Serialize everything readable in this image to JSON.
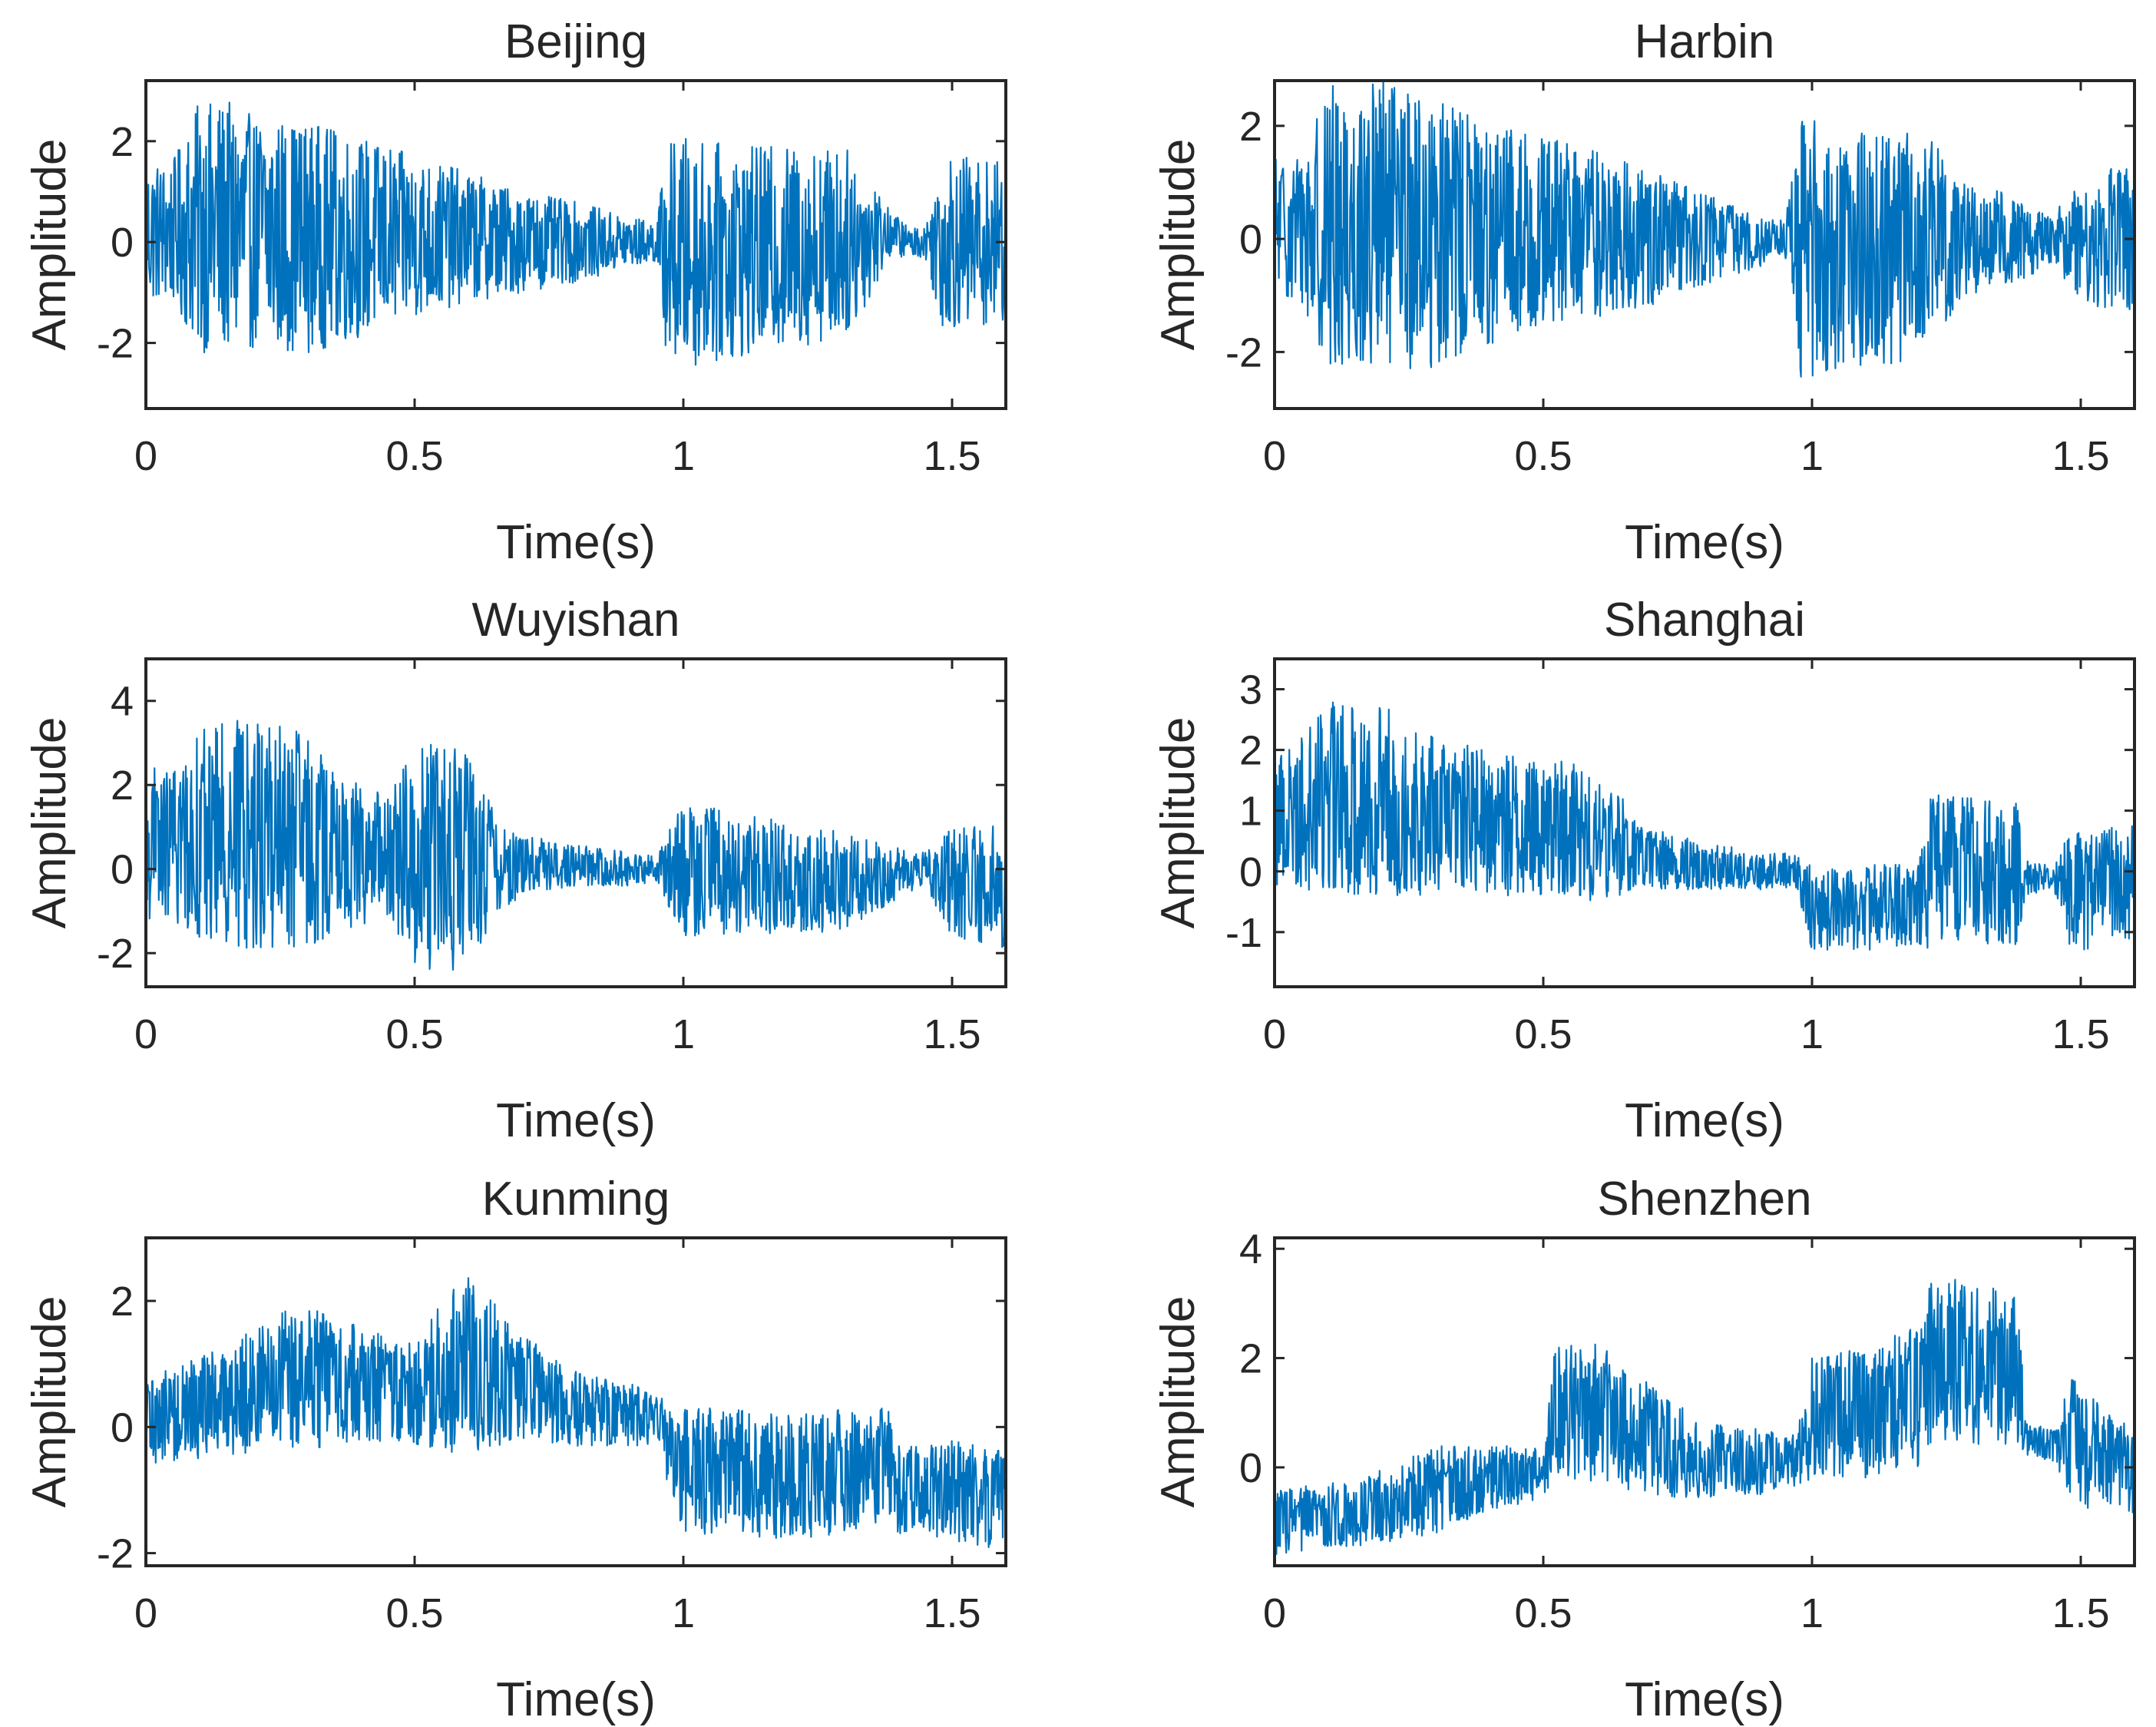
{
  "chart_data": [
    {
      "type": "line",
      "title": "Beijing",
      "xlabel": "Time(s)",
      "ylabel": "Amplitude",
      "xlim": [
        0,
        1.6
      ],
      "ylim": [
        -3.3,
        3.2
      ],
      "xticks": [
        {
          "v": 0,
          "label": "0"
        },
        {
          "v": 0.5,
          "label": "0.5"
        },
        {
          "v": 1,
          "label": "1"
        },
        {
          "v": 1.5,
          "label": "1.5"
        }
      ],
      "yticks": [
        {
          "v": -2,
          "label": "-2"
        },
        {
          "v": 0,
          "label": "0"
        },
        {
          "v": 2,
          "label": "2"
        }
      ],
      "color": "#0072bd",
      "envelope": {
        "t": [
          0,
          0.05,
          0.1,
          0.15,
          0.2,
          0.3,
          0.4,
          0.5,
          0.6,
          0.7,
          0.8,
          0.9,
          0.95,
          0.97,
          1.0,
          1.1,
          1.2,
          1.3,
          1.35,
          1.38,
          1.42,
          1.45,
          1.48,
          1.52,
          1.6
        ],
        "amplitude": [
          1.4,
          1.4,
          2.5,
          2.5,
          2.3,
          2.3,
          2.0,
          1.6,
          1.3,
          1.0,
          0.8,
          0.5,
          0.4,
          2.2,
          2.3,
          2.1,
          2.0,
          1.9,
          1.2,
          0.5,
          0.3,
          0.3,
          1.7,
          1.7,
          1.6
        ],
        "offset": [
          0.2,
          0.2,
          0.3,
          0.3,
          0.2,
          0.1,
          0.1,
          0.1,
          0.1,
          0.0,
          0.0,
          0.0,
          0.0,
          -0.2,
          -0.2,
          -0.2,
          -0.1,
          0.0,
          0.1,
          0.2,
          0.0,
          0.0,
          0.0,
          0.0,
          0.0
        ]
      }
    },
    {
      "type": "line",
      "title": "Harbin",
      "xlabel": "Time(s)",
      "ylabel": "Amplitude",
      "xlim": [
        0,
        1.6
      ],
      "ylim": [
        -3.0,
        2.8
      ],
      "xticks": [
        {
          "v": 0,
          "label": "0"
        },
        {
          "v": 0.5,
          "label": "0.5"
        },
        {
          "v": 1,
          "label": "1"
        },
        {
          "v": 1.5,
          "label": "1.5"
        }
      ],
      "yticks": [
        {
          "v": -2,
          "label": "-2"
        },
        {
          "v": 0,
          "label": "0"
        },
        {
          "v": 2,
          "label": "2"
        }
      ],
      "color": "#0072bd",
      "envelope": {
        "t": [
          0,
          0.05,
          0.1,
          0.2,
          0.3,
          0.4,
          0.5,
          0.6,
          0.7,
          0.8,
          0.9,
          0.95,
          0.98,
          1.0,
          1.1,
          1.2,
          1.25,
          1.3,
          1.4,
          1.45,
          1.48,
          1.52,
          1.6
        ],
        "amplitude": [
          1.3,
          1.3,
          2.5,
          2.6,
          2.4,
          2.0,
          1.7,
          1.5,
          1.2,
          0.8,
          0.5,
          0.3,
          2.3,
          2.3,
          2.1,
          2.0,
          1.5,
          1.0,
          0.7,
          0.4,
          0.9,
          1.2,
          1.3
        ],
        "offset": [
          0.2,
          0.2,
          0.2,
          0.2,
          0.1,
          0.1,
          0.1,
          0.1,
          0.0,
          0.0,
          0.0,
          0.0,
          -0.2,
          -0.2,
          -0.2,
          -0.1,
          0.0,
          0.0,
          0.0,
          0.0,
          0.0,
          0.0,
          0.0
        ]
      }
    },
    {
      "type": "line",
      "title": "Wuyishan",
      "xlabel": "Time(s)",
      "ylabel": "Amplitude",
      "xlim": [
        0,
        1.6
      ],
      "ylim": [
        -2.8,
        5.0
      ],
      "xticks": [
        {
          "v": 0,
          "label": "0"
        },
        {
          "v": 0.5,
          "label": "0.5"
        },
        {
          "v": 1,
          "label": "1"
        },
        {
          "v": 1.5,
          "label": "1.5"
        }
      ],
      "yticks": [
        {
          "v": -2,
          "label": "-2"
        },
        {
          "v": 0,
          "label": "0"
        },
        {
          "v": 2,
          "label": "2"
        },
        {
          "v": 4,
          "label": "4"
        }
      ],
      "color": "#0072bd",
      "envelope": {
        "t": [
          0,
          0.05,
          0.1,
          0.2,
          0.3,
          0.35,
          0.45,
          0.5,
          0.55,
          0.6,
          0.65,
          0.7,
          0.8,
          0.9,
          0.95,
          1.0,
          1.1,
          1.2,
          1.3,
          1.4,
          1.45,
          1.5,
          1.6
        ],
        "amplitude": [
          1.8,
          1.8,
          2.5,
          2.8,
          2.6,
          2.0,
          1.4,
          2.6,
          2.8,
          2.5,
          1.3,
          0.7,
          0.5,
          0.4,
          0.3,
          1.6,
          1.5,
          1.3,
          1.2,
          0.6,
          0.4,
          1.3,
          1.5
        ],
        "offset": [
          0.6,
          0.6,
          0.8,
          0.9,
          0.6,
          0.4,
          0.3,
          0.3,
          0.3,
          0.2,
          0.1,
          0.1,
          0.1,
          0.0,
          0.0,
          0.0,
          -0.1,
          -0.2,
          -0.3,
          -0.1,
          0.0,
          -0.3,
          -0.4
        ]
      }
    },
    {
      "type": "line",
      "title": "Shanghai",
      "xlabel": "Time(s)",
      "ylabel": "Amplitude",
      "xlim": [
        0,
        1.6
      ],
      "ylim": [
        -1.9,
        3.5
      ],
      "xticks": [
        {
          "v": 0,
          "label": "0"
        },
        {
          "v": 0.5,
          "label": "0.5"
        },
        {
          "v": 1,
          "label": "1"
        },
        {
          "v": 1.5,
          "label": "1.5"
        }
      ],
      "yticks": [
        {
          "v": -1,
          "label": "-1"
        },
        {
          "v": 0,
          "label": "0"
        },
        {
          "v": 1,
          "label": "1"
        },
        {
          "v": 2,
          "label": "2"
        },
        {
          "v": 3,
          "label": "3"
        }
      ],
      "color": "#0072bd",
      "envelope": {
        "t": [
          0,
          0.05,
          0.1,
          0.2,
          0.3,
          0.4,
          0.5,
          0.55,
          0.6,
          0.65,
          0.7,
          0.8,
          0.9,
          0.97,
          1.0,
          1.1,
          1.2,
          1.22,
          1.3,
          1.38,
          1.4,
          1.45,
          1.48,
          1.52,
          1.6
        ],
        "amplitude": [
          1.2,
          1.3,
          1.6,
          1.6,
          1.3,
          1.2,
          1.1,
          1.2,
          1.0,
          0.8,
          0.5,
          0.4,
          0.3,
          0.3,
          0.7,
          0.7,
          0.7,
          1.3,
          1.2,
          1.2,
          0.3,
          0.2,
          1.0,
          1.0,
          1.0
        ],
        "offset": [
          0.9,
          1.0,
          1.2,
          1.2,
          0.9,
          0.8,
          0.7,
          0.7,
          0.5,
          0.4,
          0.2,
          0.1,
          0.0,
          0.0,
          -0.6,
          -0.6,
          -0.5,
          0.0,
          0.0,
          0.0,
          -0.1,
          -0.1,
          -0.3,
          -0.3,
          -0.2
        ]
      }
    },
    {
      "type": "line",
      "title": "Kunming",
      "xlabel": "Time(s)",
      "ylabel": "Amplitude",
      "xlim": [
        0,
        1.6
      ],
      "ylim": [
        -2.2,
        3.0
      ],
      "xticks": [
        {
          "v": 0,
          "label": "0"
        },
        {
          "v": 0.5,
          "label": "0.5"
        },
        {
          "v": 1,
          "label": "1"
        },
        {
          "v": 1.5,
          "label": "1.5"
        }
      ],
      "yticks": [
        {
          "v": -2,
          "label": "-2"
        },
        {
          "v": 0,
          "label": "0"
        },
        {
          "v": 2,
          "label": "2"
        }
      ],
      "color": "#0072bd",
      "envelope": {
        "t": [
          0,
          0.1,
          0.2,
          0.3,
          0.4,
          0.5,
          0.55,
          0.6,
          0.7,
          0.8,
          0.9,
          0.95,
          1.0,
          1.1,
          1.2,
          1.3,
          1.38,
          1.4,
          1.45,
          1.5,
          1.6
        ],
        "amplitude": [
          0.7,
          0.8,
          1.0,
          1.2,
          0.9,
          0.8,
          1.3,
          1.4,
          0.9,
          0.6,
          0.5,
          0.4,
          1.0,
          1.0,
          1.0,
          1.0,
          0.9,
          0.7,
          0.7,
          0.8,
          0.8
        ],
        "offset": [
          0.1,
          0.3,
          0.6,
          0.8,
          0.7,
          0.5,
          0.9,
          1.0,
          0.6,
          0.3,
          0.2,
          0.1,
          -0.7,
          -0.7,
          -0.8,
          -0.7,
          -0.6,
          -1.0,
          -1.0,
          -1.0,
          -1.2
        ]
      }
    },
    {
      "type": "line",
      "title": "Shenzhen",
      "xlabel": "Time(s)",
      "ylabel": "Amplitude",
      "xlim": [
        0,
        1.6
      ],
      "ylim": [
        -1.8,
        4.2
      ],
      "xticks": [
        {
          "v": 0,
          "label": "0"
        },
        {
          "v": 0.5,
          "label": "0.5"
        },
        {
          "v": 1,
          "label": "1"
        },
        {
          "v": 1.5,
          "label": "1.5"
        }
      ],
      "yticks": [
        {
          "v": 0,
          "label": "0"
        },
        {
          "v": 2,
          "label": "2"
        },
        {
          "v": 4,
          "label": "4"
        }
      ],
      "color": "#0072bd",
      "envelope": {
        "t": [
          0,
          0.1,
          0.2,
          0.3,
          0.4,
          0.5,
          0.52,
          0.6,
          0.7,
          0.8,
          0.9,
          0.97,
          1.0,
          1.1,
          1.2,
          1.22,
          1.3,
          1.38,
          1.4,
          1.45,
          1.48,
          1.55,
          1.6
        ],
        "amplitude": [
          0.6,
          0.6,
          0.7,
          0.8,
          0.6,
          0.5,
          1.2,
          1.3,
          1.0,
          0.7,
          0.6,
          0.5,
          1.1,
          1.2,
          1.3,
          1.6,
          1.5,
          1.4,
          0.3,
          0.3,
          1.2,
          0.9,
          0.8
        ],
        "offset": [
          -1.0,
          -0.9,
          -0.7,
          -0.4,
          -0.2,
          -0.1,
          1.0,
          1.0,
          0.5,
          0.1,
          0.1,
          0.1,
          0.9,
          1.0,
          1.3,
          2.0,
          1.9,
          1.8,
          0.5,
          0.4,
          0.5,
          0.1,
          -0.1
        ]
      }
    }
  ]
}
